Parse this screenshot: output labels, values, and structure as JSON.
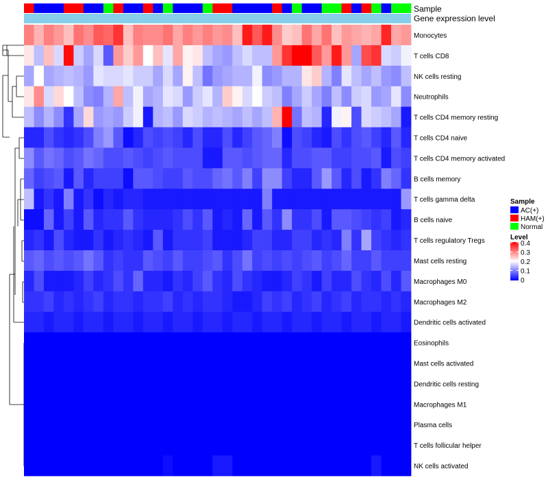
{
  "chart_data": {
    "type": "heatmap",
    "title": "",
    "xlabel": "",
    "ylabel": "",
    "annotation_rows": [
      {
        "name": "Sample",
        "label": "Sample"
      },
      {
        "name": "Gene expression level",
        "label": "Gene expression level",
        "color": "#87ceeb"
      }
    ],
    "sample_groups": [
      {
        "key": "AC",
        "label": "AC(+)",
        "color": "#0000ff"
      },
      {
        "key": "HAM",
        "label": "HAM(+)",
        "color": "#ff0000"
      },
      {
        "key": "Normal",
        "label": "Normal",
        "color": "#00ff00"
      }
    ],
    "legends": {
      "sample_title": "Sample",
      "level_title": "Level",
      "level_ticks": [
        "0.4",
        "0.3",
        "0.2",
        "0.1",
        "0"
      ]
    },
    "color_scale": {
      "min": 0,
      "mid": 0.2,
      "max": 0.4,
      "low": "#0000ff",
      "middle": "#ffffff",
      "high": "#ff0000"
    },
    "sample_annotation": [
      "HAM",
      "AC",
      "AC",
      "AC",
      "HAM",
      "HAM",
      "AC",
      "AC",
      "Normal",
      "HAM",
      "AC",
      "AC",
      "HAM",
      "AC",
      "Normal",
      "AC",
      "AC",
      "AC",
      "Normal",
      "HAM",
      "HAM",
      "AC",
      "AC",
      "AC",
      "AC",
      "HAM",
      "AC",
      "Normal",
      "AC",
      "AC",
      "Normal",
      "Normal",
      "HAM",
      "AC",
      "HAM",
      "Normal",
      "AC",
      "Normal",
      "Normal"
    ],
    "rows": [
      "Monocytes",
      "T cells CD8",
      "NK cells resting",
      "Neutrophils",
      "T cells CD4 memory resting",
      "T cells CD4 naive",
      "T cells CD4 memory activated",
      "B cells memory",
      "T cells gamma delta",
      "B cells naive",
      "T cells regulatory  Tregs",
      "Mast cells resting",
      "Macrophages M0",
      "Macrophages M2",
      "Dendritic cells activated",
      "Eosinophils",
      "Mast cells activated",
      "Dendritic cells resting",
      "Macrophages M1",
      "Plasma cells",
      "T cells follicular helper",
      "NK cells activated"
    ],
    "values": [
      [
        0.3,
        0.26,
        0.3,
        0.28,
        0.25,
        0.31,
        0.29,
        0.33,
        0.32,
        0.36,
        0.25,
        0.3,
        0.29,
        0.29,
        0.31,
        0.27,
        0.3,
        0.28,
        0.3,
        0.28,
        0.29,
        0.25,
        0.38,
        0.33,
        0.38,
        0.29,
        0.24,
        0.25,
        0.31,
        0.27,
        0.31,
        0.25,
        0.28,
        0.27,
        0.26,
        0.27,
        0.37,
        0.27,
        0.28
      ],
      [
        0.22,
        0.15,
        0.25,
        0.17,
        0.39,
        0.16,
        0.13,
        0.17,
        0.07,
        0.28,
        0.24,
        0.28,
        0.2,
        0.25,
        0.18,
        0.27,
        0.21,
        0.22,
        0.15,
        0.13,
        0.12,
        0.15,
        0.17,
        0.15,
        0.15,
        0.28,
        0.36,
        0.4,
        0.4,
        0.33,
        0.28,
        0.38,
        0.28,
        0.13,
        0.34,
        0.36,
        0.17,
        0.16,
        0.19
      ],
      [
        0.13,
        0.2,
        0.13,
        0.14,
        0.15,
        0.14,
        0.12,
        0.18,
        0.17,
        0.17,
        0.18,
        0.16,
        0.16,
        0.13,
        0.17,
        0.13,
        0.21,
        0.15,
        0.09,
        0.12,
        0.13,
        0.14,
        0.14,
        0.19,
        0.11,
        0.12,
        0.14,
        0.14,
        0.22,
        0.24,
        0.14,
        0.1,
        0.18,
        0.15,
        0.13,
        0.15,
        0.12,
        0.11,
        0.15
      ],
      [
        0.22,
        0.29,
        0.17,
        0.23,
        0.2,
        0.15,
        0.11,
        0.1,
        0.14,
        0.27,
        0.15,
        0.19,
        0.13,
        0.14,
        0.18,
        0.17,
        0.12,
        0.16,
        0.18,
        0.14,
        0.24,
        0.21,
        0.17,
        0.2,
        0.16,
        0.15,
        0.1,
        0.13,
        0.16,
        0.13,
        0.1,
        0.15,
        0.11,
        0.16,
        0.17,
        0.12,
        0.13,
        0.18,
        0.11
      ],
      [
        0.15,
        0.11,
        0.14,
        0.11,
        0.04,
        0.13,
        0.23,
        0.12,
        0.13,
        0.12,
        0.16,
        0.19,
        0.02,
        0.14,
        0.15,
        0.12,
        0.17,
        0.16,
        0.14,
        0.15,
        0.14,
        0.13,
        0.15,
        0.13,
        0.15,
        0.26,
        0.4,
        0.09,
        0.15,
        0.14,
        0.03,
        0.19,
        0.21,
        0.06,
        0.17,
        0.16,
        0.15,
        0.13,
        0.02
      ],
      [
        0.03,
        0.03,
        0.06,
        0.04,
        0.03,
        0.04,
        0.06,
        0.1,
        0.12,
        0.07,
        0.01,
        0.03,
        0.06,
        0.05,
        0.06,
        0.05,
        0.03,
        0.06,
        0.03,
        0.03,
        0.06,
        0.03,
        0.05,
        0.07,
        0.08,
        0.1,
        0.01,
        0.06,
        0.05,
        0.03,
        0.02,
        0.06,
        0.04,
        0.06,
        0.07,
        0.05,
        0.03,
        0.07,
        0.03
      ],
      [
        0.11,
        0.07,
        0.09,
        0.08,
        0.06,
        0.07,
        0.09,
        0.08,
        0.06,
        0.06,
        0.07,
        0.06,
        0.05,
        0.06,
        0.07,
        0.06,
        0.06,
        0.06,
        0.02,
        0.02,
        0.07,
        0.07,
        0.06,
        0.07,
        0.08,
        0.08,
        0.03,
        0.06,
        0.06,
        0.07,
        0.07,
        0.05,
        0.05,
        0.06,
        0.06,
        0.07,
        0.02,
        0.06,
        0.05
      ],
      [
        0.08,
        0.05,
        0.06,
        0.07,
        0.02,
        0.07,
        0.03,
        0.05,
        0.05,
        0.05,
        0.01,
        0.07,
        0.07,
        0.06,
        0.05,
        0.05,
        0.07,
        0.06,
        0.06,
        0.08,
        0.09,
        0.07,
        0.1,
        0.05,
        0.11,
        0.11,
        0.05,
        0.03,
        0.03,
        0.07,
        0.12,
        0.07,
        0.03,
        0.06,
        0.02,
        0.04,
        0.1,
        0.08,
        0.04
      ],
      [
        0.15,
        0.02,
        0.04,
        0.02,
        0.1,
        0.02,
        0.04,
        0.01,
        0.03,
        0.02,
        0.03,
        0.03,
        0.02,
        0.02,
        0.02,
        0.02,
        0.02,
        0.02,
        0.02,
        0.02,
        0.02,
        0.02,
        0.02,
        0.02,
        0.1,
        0.02,
        0.02,
        0.02,
        0.02,
        0.02,
        0.02,
        0.02,
        0.02,
        0.02,
        0.02,
        0.02,
        0.02,
        0.02,
        0.12
      ],
      [
        0.01,
        0.01,
        0.08,
        0.02,
        0.05,
        0.02,
        0.07,
        0.03,
        0.04,
        0.04,
        0.07,
        0.04,
        0.03,
        0.03,
        0.03,
        0.04,
        0.06,
        0.04,
        0.07,
        0.02,
        0.03,
        0.02,
        0.08,
        0.02,
        0.07,
        0.04,
        0.11,
        0.04,
        0.04,
        0.06,
        0.02,
        0.07,
        0.07,
        0.06,
        0.05,
        0.04,
        0.05,
        0.02,
        0.03
      ],
      [
        0.03,
        0.04,
        0.02,
        0.06,
        0.03,
        0.02,
        0.02,
        0.04,
        0.02,
        0.03,
        0.04,
        0.03,
        0.02,
        0.07,
        0.02,
        0.04,
        0.04,
        0.04,
        0.05,
        0.02,
        0.02,
        0.02,
        0.03,
        0.05,
        0.05,
        0.03,
        0.03,
        0.05,
        0.05,
        0.03,
        0.04,
        0.03,
        0.1,
        0.04,
        0.13,
        0.05,
        0.04,
        0.03,
        0.04
      ],
      [
        0.07,
        0.08,
        0.06,
        0.07,
        0.06,
        0.07,
        0.09,
        0.07,
        0.04,
        0.05,
        0.04,
        0.04,
        0.07,
        0.06,
        0.05,
        0.07,
        0.05,
        0.05,
        0.06,
        0.07,
        0.04,
        0.06,
        0.09,
        0.05,
        0.06,
        0.05,
        0.06,
        0.05,
        0.06,
        0.07,
        0.05,
        0.06,
        0.08,
        0.05,
        0.05,
        0.07,
        0.05,
        0.05,
        0.05
      ],
      [
        0.03,
        0.06,
        0.02,
        0.02,
        0.02,
        0.03,
        0.05,
        0.03,
        0.04,
        0.06,
        0.04,
        0.08,
        0.03,
        0.03,
        0.02,
        0.04,
        0.03,
        0.05,
        0.07,
        0.04,
        0.03,
        0.06,
        0.04,
        0.03,
        0.02,
        0.02,
        0.03,
        0.05,
        0.04,
        0.02,
        0.05,
        0.03,
        0.03,
        0.06,
        0.04,
        0.03,
        0.06,
        0.03,
        0.07
      ],
      [
        0.04,
        0.04,
        0.05,
        0.03,
        0.04,
        0.03,
        0.04,
        0.05,
        0.03,
        0.04,
        0.04,
        0.03,
        0.04,
        0.04,
        0.05,
        0.03,
        0.04,
        0.03,
        0.04,
        0.04,
        0.03,
        0.02,
        0.02,
        0.03,
        0.05,
        0.04,
        0.05,
        0.03,
        0.04,
        0.05,
        0.03,
        0.04,
        0.05,
        0.03,
        0.04,
        0.04,
        0.03,
        0.04,
        0.03
      ],
      [
        0.03,
        0.03,
        0.02,
        0.03,
        0.03,
        0.02,
        0.03,
        0.03,
        0.02,
        0.03,
        0.03,
        0.02,
        0.03,
        0.03,
        0.02,
        0.03,
        0.03,
        0.02,
        0.03,
        0.03,
        0.02,
        0.03,
        0.03,
        0.02,
        0.03,
        0.03,
        0.02,
        0.03,
        0.03,
        0.02,
        0.03,
        0.03,
        0.02,
        0.03,
        0.03,
        0.02,
        0.03,
        0.03,
        0.02
      ],
      [
        0,
        0,
        0,
        0,
        0,
        0,
        0,
        0,
        0,
        0,
        0,
        0,
        0,
        0,
        0,
        0,
        0,
        0,
        0,
        0,
        0,
        0,
        0,
        0,
        0,
        0,
        0,
        0,
        0,
        0,
        0,
        0,
        0,
        0,
        0,
        0,
        0,
        0,
        0
      ],
      [
        0,
        0,
        0,
        0,
        0,
        0,
        0,
        0,
        0,
        0,
        0,
        0,
        0,
        0,
        0,
        0,
        0,
        0,
        0,
        0,
        0,
        0,
        0,
        0,
        0,
        0,
        0,
        0,
        0,
        0,
        0,
        0,
        0,
        0,
        0,
        0,
        0,
        0,
        0
      ],
      [
        0,
        0,
        0,
        0,
        0,
        0,
        0,
        0,
        0,
        0,
        0,
        0,
        0,
        0,
        0,
        0,
        0,
        0,
        0,
        0,
        0,
        0,
        0,
        0,
        0,
        0,
        0,
        0,
        0,
        0,
        0,
        0,
        0,
        0,
        0,
        0,
        0,
        0,
        0
      ],
      [
        0,
        0,
        0,
        0,
        0,
        0,
        0,
        0,
        0,
        0,
        0,
        0,
        0,
        0,
        0,
        0,
        0,
        0,
        0,
        0,
        0,
        0,
        0,
        0,
        0,
        0,
        0,
        0,
        0,
        0,
        0,
        0,
        0,
        0,
        0,
        0,
        0,
        0,
        0
      ],
      [
        0,
        0,
        0,
        0,
        0,
        0,
        0,
        0,
        0,
        0,
        0,
        0,
        0,
        0,
        0,
        0,
        0,
        0,
        0,
        0,
        0,
        0,
        0,
        0,
        0,
        0,
        0,
        0,
        0,
        0,
        0,
        0,
        0,
        0,
        0,
        0,
        0,
        0,
        0
      ],
      [
        0,
        0,
        0,
        0,
        0,
        0,
        0,
        0,
        0,
        0,
        0,
        0,
        0,
        0,
        0,
        0,
        0,
        0,
        0,
        0,
        0,
        0,
        0,
        0,
        0,
        0,
        0,
        0,
        0,
        0,
        0,
        0,
        0,
        0,
        0,
        0,
        0,
        0,
        0
      ],
      [
        0,
        0,
        0,
        0,
        0,
        0,
        0,
        0,
        0,
        0,
        0,
        0,
        0,
        0,
        0.01,
        0,
        0,
        0,
        0,
        0.02,
        0.02,
        0,
        0,
        0,
        0,
        0,
        0,
        0,
        0,
        0,
        0,
        0,
        0,
        0,
        0,
        0.02,
        0,
        0,
        0
      ]
    ]
  }
}
